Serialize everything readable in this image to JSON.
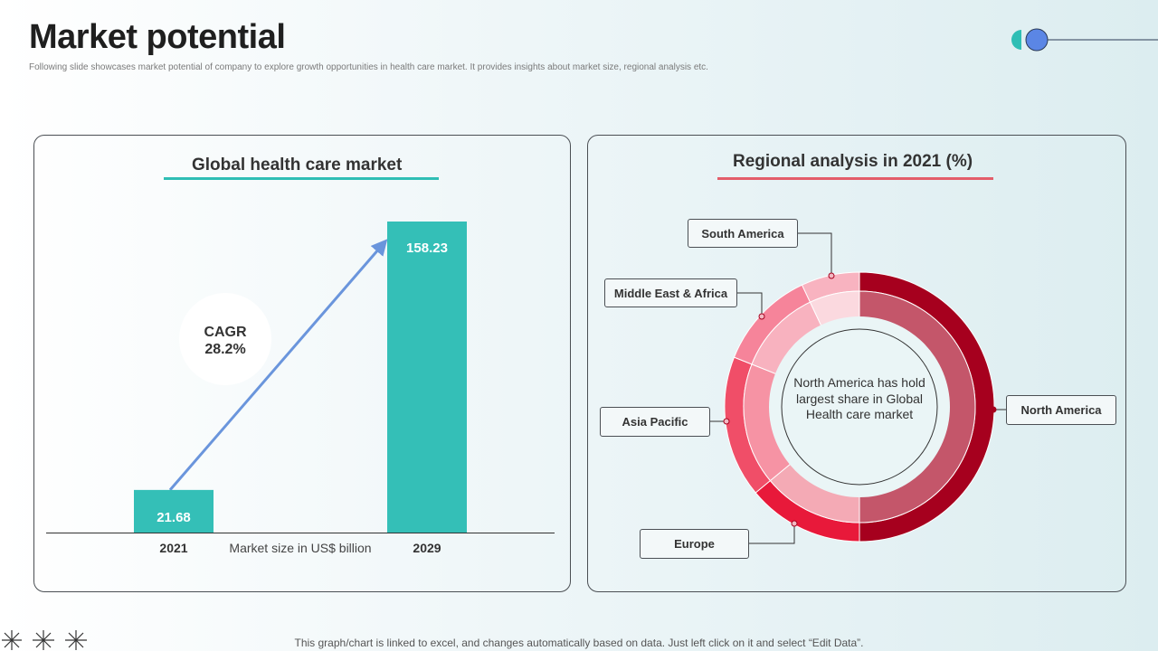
{
  "slide": {
    "title": "Market potential",
    "subtitle": "Following slide showcases market potential of company to explore growth opportunities in health care market. It provides insights about market size, regional analysis etc.",
    "footer": "This graph/chart is linked to excel, and changes automatically based on data. Just left click on it and select “Edit Data”."
  },
  "left_panel": {
    "title": "Global health care market",
    "cagr_label": "CAGR",
    "cagr_value": "28.2%"
  },
  "right_panel": {
    "title": "Regional analysis in 2021 (%)",
    "center_text": "North America has hold largest share in Global Health care market"
  },
  "colors": {
    "accent_teal": "#34bfb7",
    "arrow_blue": "#6a95dc",
    "underline_red": "#e35d6a"
  },
  "chart_data": [
    {
      "type": "bar",
      "categories": [
        "2021",
        "2029"
      ],
      "values": [
        21.68,
        158.23
      ],
      "value_labels": [
        "21.68",
        "158.23"
      ],
      "xlabel": "Market size in US$ billion",
      "ylim": [
        0,
        158.23
      ],
      "grid": false,
      "color": "#34bfb7"
    },
    {
      "type": "pie",
      "style": "donut",
      "title": "Regional analysis in 2021 (%)",
      "labels": [
        "North America",
        "Europe",
        "Asia Pacific",
        "Middle East & Africa",
        "South America"
      ],
      "values": [
        50,
        14,
        17,
        12,
        7
      ],
      "colors": [
        "#a6001e",
        "#e8193a",
        "#f04e68",
        "#f6849a",
        "#f8b3c0"
      ],
      "inner_colors": [
        "#c4566a",
        "#f4aab5",
        "#f693a4",
        "#f8b2bf",
        "#fbd9df"
      ]
    }
  ]
}
